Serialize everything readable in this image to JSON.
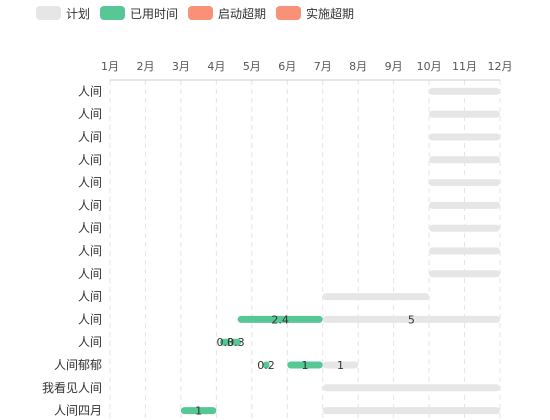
{
  "legend": {
    "items": [
      {
        "name": "计划",
        "color": "#e6e6e6"
      },
      {
        "name": "已用时间",
        "color": "#57c795"
      },
      {
        "name": "启动超期",
        "color": "#f89177"
      },
      {
        "name": "实施超期",
        "color": "#f89177"
      }
    ]
  },
  "chart_data": {
    "type": "bar",
    "orientation": "horizontal-gantt",
    "x_ticks": [
      "1月",
      "2月",
      "3月",
      "4月",
      "5月",
      "6月",
      "7月",
      "8月",
      "9月",
      "10月",
      "11月",
      "12月"
    ],
    "xlim": [
      1,
      12
    ],
    "grid": true,
    "legend_position": "top-left",
    "categories": [
      "人间",
      "人间",
      "人间",
      "人间",
      "人间",
      "人间",
      "人间",
      "人间",
      "人间",
      "人间",
      "人间",
      "人间",
      "人间郁郁",
      "我看见人间",
      "人间四月"
    ],
    "series": [
      {
        "name": "计划",
        "color": "#e6e6e6",
        "bars": [
          {
            "row": 0,
            "start": 10,
            "end": 12
          },
          {
            "row": 1,
            "start": 10,
            "end": 12
          },
          {
            "row": 2,
            "start": 10,
            "end": 12
          },
          {
            "row": 3,
            "start": 10,
            "end": 12
          },
          {
            "row": 4,
            "start": 10,
            "end": 12
          },
          {
            "row": 5,
            "start": 10,
            "end": 12
          },
          {
            "row": 6,
            "start": 10,
            "end": 12
          },
          {
            "row": 7,
            "start": 10,
            "end": 12
          },
          {
            "row": 8,
            "start": 10,
            "end": 12
          },
          {
            "row": 9,
            "start": 7,
            "end": 10
          },
          {
            "row": 10,
            "start": 7,
            "end": 12,
            "label": "5"
          },
          {
            "row": 12,
            "start": 7,
            "end": 8,
            "label": "1"
          },
          {
            "row": 13,
            "start": 7,
            "end": 12
          },
          {
            "row": 14,
            "start": 7,
            "end": 12
          }
        ]
      },
      {
        "name": "已用时间",
        "color": "#57c795",
        "bars": [
          {
            "row": 10,
            "start": 4.6,
            "end": 7,
            "label": "2.4"
          },
          {
            "row": 11,
            "start": 4.1,
            "end": 4.4,
            "label": "0.3"
          },
          {
            "row": 11,
            "start": 4.4,
            "end": 4.7,
            "label": "0.3"
          },
          {
            "row": 12,
            "start": 5.3,
            "end": 5.5,
            "label": "0.2"
          },
          {
            "row": 12,
            "start": 6,
            "end": 7,
            "label": "1"
          },
          {
            "row": 14,
            "start": 3,
            "end": 4,
            "label": "1"
          }
        ]
      },
      {
        "name": "启动超期",
        "color": "#f89177",
        "bars": []
      },
      {
        "name": "实施超期",
        "color": "#f89177",
        "bars": []
      }
    ]
  }
}
